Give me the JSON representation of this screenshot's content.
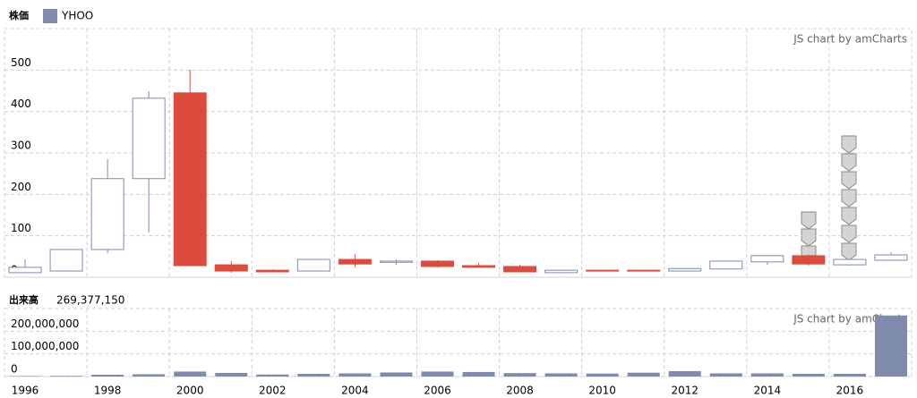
{
  "chart_data": [
    {
      "type": "candlestick",
      "title": "株価",
      "credit": "JS chart by amCharts",
      "categories": [
        "1996",
        null,
        "1998",
        null,
        "2000",
        null,
        "2002",
        null,
        "2004",
        null,
        "2006",
        null,
        "2008",
        null,
        "2010",
        null,
        "2012",
        null,
        "2014",
        null,
        "2016",
        null
      ],
      "series": [
        {
          "name": "YHOO",
          "color": "#7f8bab",
          "down_color": "#db4c3c",
          "open": [
            11,
            15,
            67,
            238,
            445,
            30,
            17,
            15,
            43,
            36,
            39,
            28,
            26,
            11,
            17,
            17,
            15,
            20,
            37,
            52,
            30,
            41
          ],
          "high": [
            43,
            67,
            285,
            449,
            501,
            39,
            19,
            43,
            56,
            43,
            41,
            34,
            30,
            17,
            18,
            18,
            21,
            39,
            52,
            55,
            43,
            60
          ],
          "low": [
            10,
            15,
            58,
            108,
            28,
            11,
            12,
            15,
            24,
            30,
            24,
            23,
            13,
            10,
            14,
            14,
            14,
            20,
            30,
            28,
            28,
            41
          ],
          "close": [
            24,
            67,
            238,
            432,
            28,
            15,
            13,
            43,
            32,
            39,
            26,
            24,
            13,
            17,
            15,
            15,
            21,
            39,
            52,
            32,
            43,
            54
          ]
        }
      ],
      "ylim": [
        0,
        600
      ],
      "yticks": [
        0,
        100,
        200,
        300,
        400,
        500
      ],
      "grid": true
    },
    {
      "type": "bar",
      "title": "出来高",
      "legend_value_label": "269,377,150",
      "credit": "JS chart by amCharts",
      "series": [
        {
          "name": "YHOO",
          "color": "#7f8bab",
          "values": [
            2000000,
            3000000,
            8000000,
            10000000,
            22000000,
            16000000,
            9000000,
            12000000,
            14000000,
            18000000,
            22000000,
            20000000,
            15000000,
            14000000,
            13000000,
            17000000,
            24000000,
            14000000,
            14000000,
            12000000,
            12000000,
            269377150
          ]
        }
      ],
      "ylim": [
        0,
        300000000
      ],
      "yticks": [
        0,
        {
          "value": 100000000,
          "label": "100,000,000"
        },
        {
          "value": 200000000,
          "label": "200,000,000"
        }
      ],
      "grid": true
    }
  ]
}
